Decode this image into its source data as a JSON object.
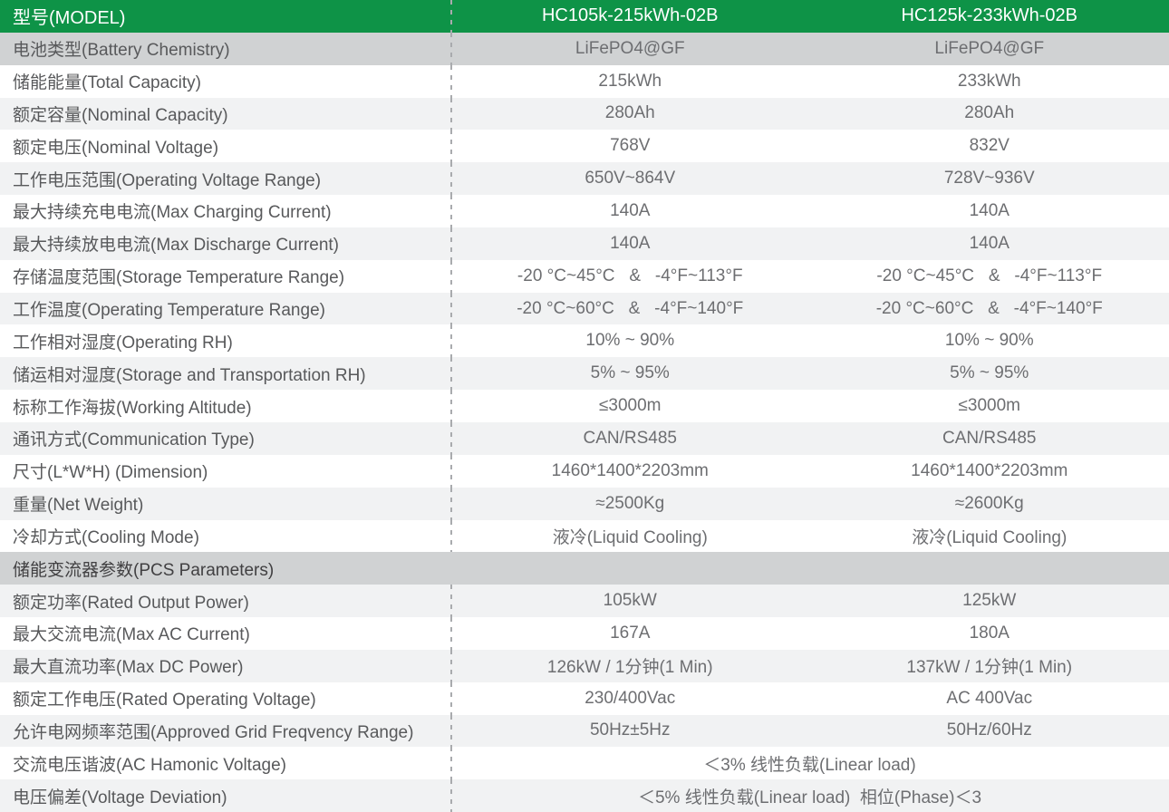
{
  "table": {
    "header": {
      "label": "型号(MODEL)",
      "models": [
        "HC105k-215kWh-02B",
        "HC125k-233kWh-02B"
      ]
    },
    "rows": [
      {
        "label": "电池类型(Battery Chemistry)",
        "v1": "LiFePO4@GF",
        "v2": "LiFePO4@GF"
      },
      {
        "label": "储能能量(Total Capacity)",
        "v1": "215kWh",
        "v2": "233kWh"
      },
      {
        "label": "额定容量(Nominal Capacity)",
        "v1": "280Ah",
        "v2": "280Ah"
      },
      {
        "label": "额定电压(Nominal Voltage)",
        "v1": "768V",
        "v2": "832V"
      },
      {
        "label": "工作电压范围(Operating Voltage Range)",
        "v1": "650V~864V",
        "v2": "728V~936V"
      },
      {
        "label": "最大持续充电电流(Max Charging Current)",
        "v1": "140A",
        "v2": "140A"
      },
      {
        "label": "最大持续放电电流(Max Discharge Current)",
        "v1": "140A",
        "v2": "140A"
      },
      {
        "label": "存储温度范围(Storage Temperature Range)",
        "v1": "-20 °C~45°C   &   -4°F~113°F",
        "v2": "-20 °C~45°C   &   -4°F~113°F"
      },
      {
        "label": "工作温度(Operating Temperature Range)",
        "v1": "-20 °C~60°C   &   -4°F~140°F",
        "v2": "-20 °C~60°C   &   -4°F~140°F"
      },
      {
        "label": "工作相对湿度(Operating RH)",
        "v1": "10% ~ 90%",
        "v2": "10% ~ 90%"
      },
      {
        "label": "储运相对湿度(Storage and Transportation RH)",
        "v1": "5% ~ 95%",
        "v2": "5% ~ 95%"
      },
      {
        "label": "标称工作海拔(Working Altitude)",
        "v1": "≤3000m",
        "v2": "≤3000m"
      },
      {
        "label": "通讯方式(Communication Type)",
        "v1": "CAN/RS485",
        "v2": "CAN/RS485"
      },
      {
        "label": "尺寸(L*W*H) (Dimension)",
        "v1": "1460*1400*2203mm",
        "v2": "1460*1400*2203mm"
      },
      {
        "label": "重量(Net Weight)",
        "v1": "≈2500Kg",
        "v2": "≈2600Kg"
      },
      {
        "label": "冷却方式(Cooling Mode)",
        "v1": "液冷(Liquid Cooling)",
        "v2": "液冷(Liquid Cooling)"
      },
      {
        "label": "储能变流器参数(PCS Parameters)",
        "section": true
      },
      {
        "label": "额定功率(Rated Output Power)",
        "v1": "105kW",
        "v2": "125kW"
      },
      {
        "label": "最大交流电流(Max AC Current)",
        "v1": "167A",
        "v2": "180A"
      },
      {
        "label": "最大直流功率(Max DC Power)",
        "v1": "126kW / 1分钟(1 Min)",
        "v2": "137kW / 1分钟(1 Min)"
      },
      {
        "label": "额定工作电压(Rated Operating Voltage)",
        "v1": "230/400Vac",
        "v2": "AC 400Vac"
      },
      {
        "label": "允许电网频率范围(Approved Grid Freqvency Range)",
        "v1": "50Hz±5Hz",
        "v2": "50Hz/60Hz"
      },
      {
        "label": "交流电压谐波(AC Hamonic Voltage)",
        "merged": "＜3% 线性负载(Linear load)"
      },
      {
        "label": "电压偏差(Voltage Deviation)",
        "merged": "＜5% 线性负载(Linear load)  相位(Phase)＜3"
      }
    ],
    "colors": {
      "header_green": "#0E9347",
      "dark_row_gray": "#d0d2d3",
      "light_row_gray": "#f1f2f3",
      "label_text": "#58595b",
      "value_text": "#6d6e71",
      "section_text": "#414042",
      "dashed_divider": "#a9abae"
    }
  }
}
